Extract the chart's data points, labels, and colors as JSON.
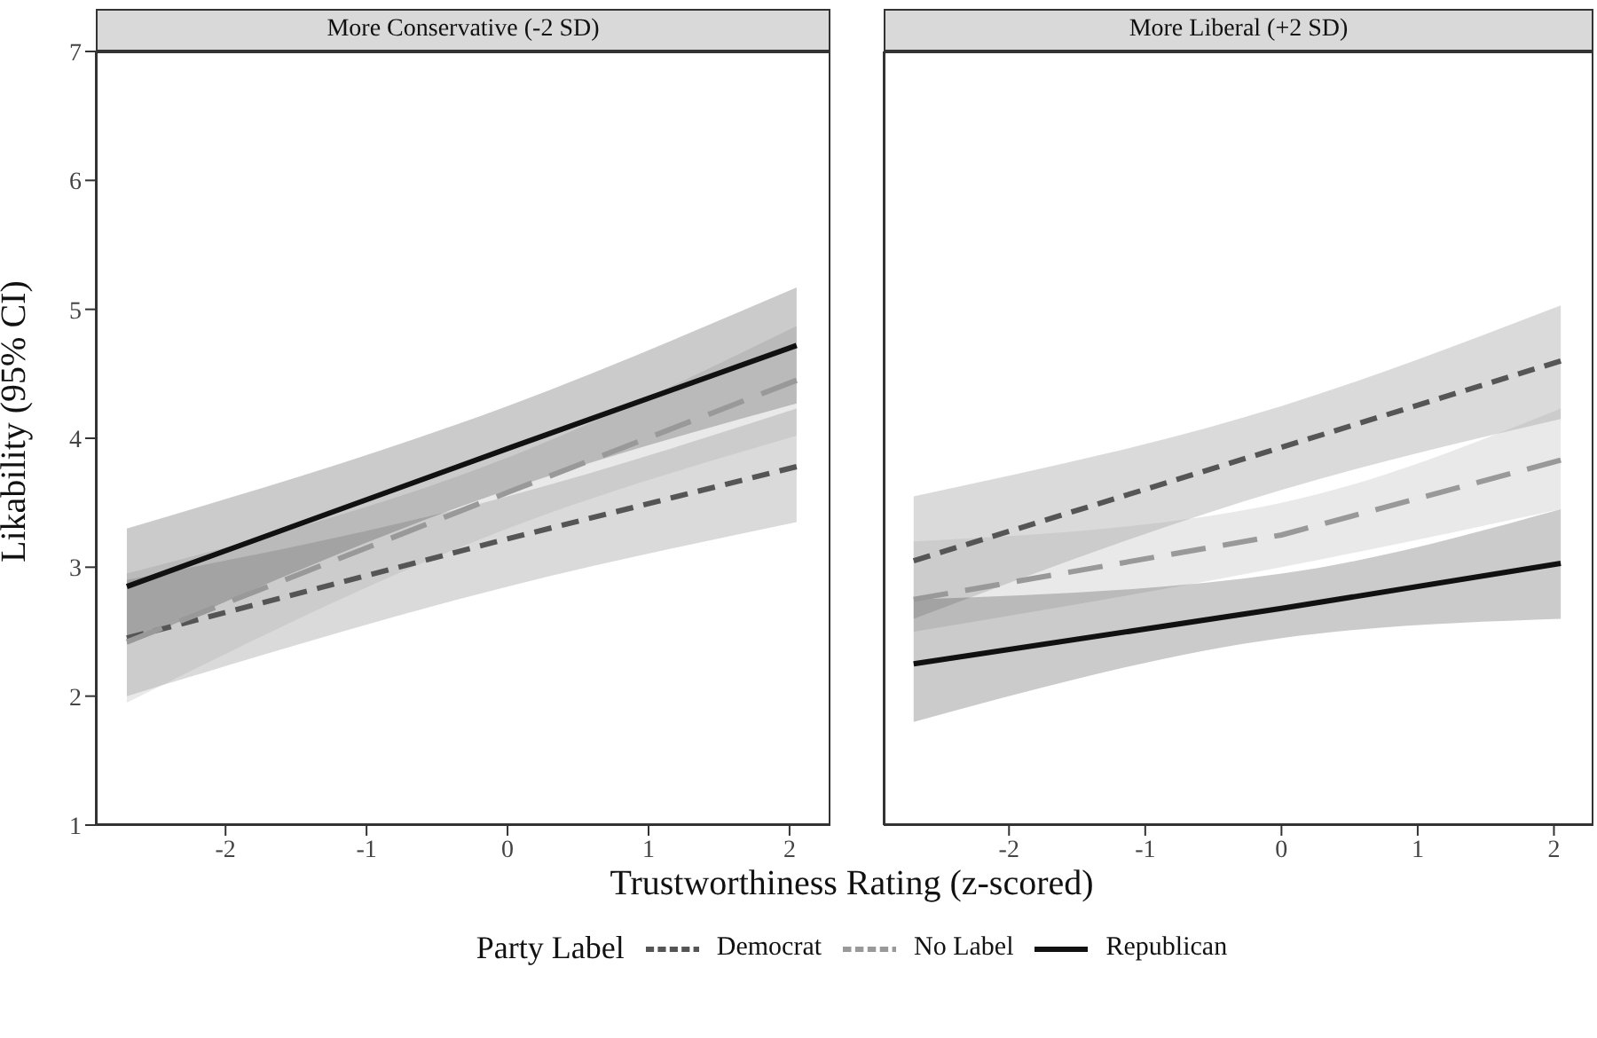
{
  "chart_data": [
    {
      "type": "line",
      "title": "More Conservative (-2 SD)",
      "xlabel": "Trustworthiness Rating (z-scored)",
      "ylabel": "Likability (95% CI)",
      "legend_title": "Party Label",
      "legend": "bottom",
      "grid": false,
      "x": [
        -2.7,
        0,
        2.05
      ],
      "xlim": [
        -2.92,
        2.29
      ],
      "xticks": [
        -2,
        -1,
        0,
        1,
        2
      ],
      "ylim": [
        1,
        7
      ],
      "yticks": [
        1,
        2,
        3,
        4,
        5,
        6,
        7
      ],
      "series": [
        {
          "name": "Democrat",
          "color": "#555555",
          "line_style": "dotted",
          "values": [
            2.45,
            3.22,
            3.78
          ],
          "lower": [
            2.0,
            2.85,
            3.35
          ],
          "upper": [
            2.9,
            3.55,
            4.23
          ]
        },
        {
          "name": "No Label",
          "color": "#999999",
          "line_style": "dashed",
          "values": [
            2.42,
            3.58,
            4.45
          ],
          "lower": [
            1.95,
            3.3,
            4.02
          ],
          "upper": [
            2.95,
            3.85,
            4.87
          ]
        },
        {
          "name": "Republican",
          "color": "#111111",
          "line_style": "solid",
          "values": [
            2.85,
            3.92,
            4.72
          ],
          "lower": [
            2.4,
            3.6,
            4.27
          ],
          "upper": [
            3.3,
            4.25,
            5.17
          ]
        }
      ]
    },
    {
      "type": "line",
      "title": "More Liberal (+2 SD)",
      "tick_labels": "x",
      "grid": false,
      "x": [
        -2.7,
        0,
        2.05
      ],
      "xlim": [
        -2.92,
        2.29
      ],
      "xticks": [
        -2,
        -1,
        0,
        1,
        2
      ],
      "ylim": [
        1,
        7
      ],
      "yticks": [
        1,
        2,
        3,
        4,
        5,
        6,
        7
      ],
      "series": [
        {
          "color": "#555555",
          "line_style": "dotted",
          "values": [
            3.05,
            3.93,
            4.6
          ],
          "lower": [
            2.6,
            3.6,
            4.15
          ],
          "upper": [
            3.55,
            4.25,
            5.03
          ]
        },
        {
          "color": "#999999",
          "line_style": "dashed",
          "values": [
            2.75,
            3.25,
            3.83
          ],
          "lower": [
            2.5,
            3.0,
            3.45
          ],
          "upper": [
            3.2,
            3.5,
            4.23
          ]
        },
        {
          "color": "#111111",
          "line_style": "solid",
          "values": [
            2.25,
            2.68,
            3.03
          ],
          "lower": [
            1.8,
            2.45,
            2.6
          ],
          "upper": [
            2.75,
            2.95,
            3.45
          ]
        }
      ]
    }
  ]
}
